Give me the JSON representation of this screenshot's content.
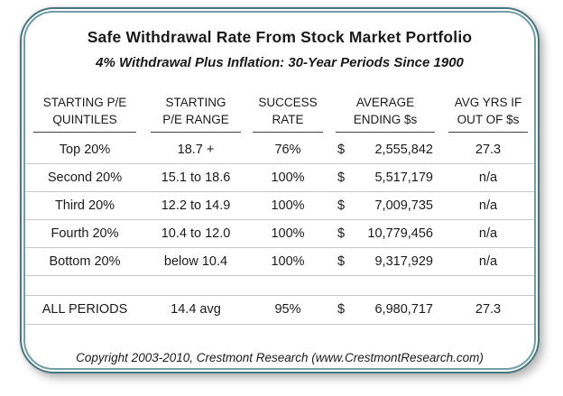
{
  "chart_data": {
    "type": "table",
    "title": "Safe Withdrawal Rate From Stock Market Portfolio",
    "subtitle": "4% Withdrawal Plus Inflation: 30-Year Periods Since 1900",
    "columns": [
      {
        "line1": "STARTING P/E",
        "line2": "QUINTILES"
      },
      {
        "line1": "STARTING",
        "line2": "P/E RANGE"
      },
      {
        "line1": "SUCCESS",
        "line2": "RATE"
      },
      {
        "line1": "AVERAGE",
        "line2": "ENDING $s"
      },
      {
        "line1": "AVG YRS IF",
        "line2": "OUT OF $s"
      }
    ],
    "rows": [
      {
        "quintiles": "Top 20%",
        "pe_range": "18.7 +",
        "success_rate": "76%",
        "currency_symbol": "$",
        "average_ending": "2,555,842",
        "avg_yrs_if_out": "27.3"
      },
      {
        "quintiles": "Second 20%",
        "pe_range": "15.1 to 18.6",
        "success_rate": "100%",
        "currency_symbol": "$",
        "average_ending": "5,517,179",
        "avg_yrs_if_out": "n/a"
      },
      {
        "quintiles": "Third 20%",
        "pe_range": "12.2 to 14.9",
        "success_rate": "100%",
        "currency_symbol": "$",
        "average_ending": "7,009,735",
        "avg_yrs_if_out": "n/a"
      },
      {
        "quintiles": "Fourth 20%",
        "pe_range": "10.4 to 12.0",
        "success_rate": "100%",
        "currency_symbol": "$",
        "average_ending": "10,779,456",
        "avg_yrs_if_out": "n/a"
      },
      {
        "quintiles": "Bottom 20%",
        "pe_range": "below 10.4",
        "success_rate": "100%",
        "currency_symbol": "$",
        "average_ending": "9,317,929",
        "avg_yrs_if_out": "n/a"
      }
    ],
    "all_periods": {
      "quintiles": "ALL PERIODS",
      "pe_range": "14.4 avg",
      "success_rate": "95%",
      "currency_symbol": "$",
      "average_ending": "6,980,717",
      "avg_yrs_if_out": "27.3"
    },
    "copyright": "Copyright 2003-2010, Crestmont Research (www.CrestmontResearch.com)"
  },
  "colors": {
    "border_outer": "#47767f",
    "border_inner": "#6f9ea5",
    "row_divider": "#c9c9c9",
    "header_underline": "#3f3f3f",
    "text": "#1a1a1a",
    "background": "#ffffff"
  }
}
